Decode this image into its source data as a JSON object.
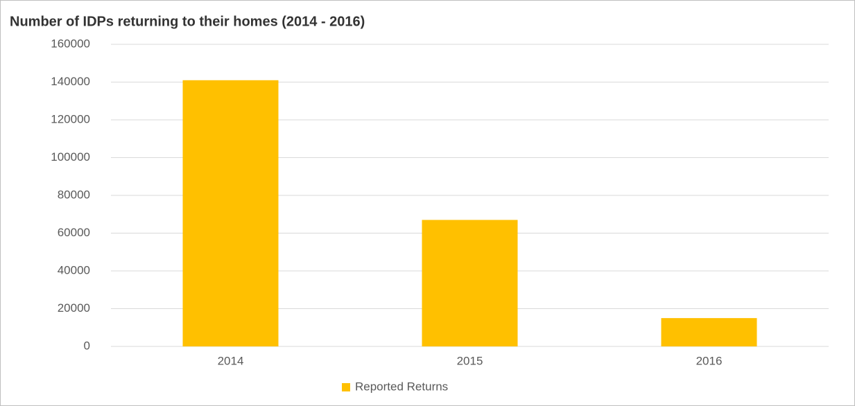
{
  "chart_data": {
    "type": "bar",
    "title": "Number of IDPs returning to their homes (2014 - 2016)",
    "categories": [
      "2014",
      "2015",
      "2016"
    ],
    "series": [
      {
        "name": "Reported Returns",
        "color": "#ffc000",
        "values": [
          141000,
          67000,
          15000
        ]
      }
    ],
    "ylim": [
      0,
      160000
    ],
    "yticks": [
      0,
      20000,
      40000,
      60000,
      80000,
      100000,
      120000,
      140000,
      160000
    ],
    "grid": true,
    "legend": "bottom"
  }
}
